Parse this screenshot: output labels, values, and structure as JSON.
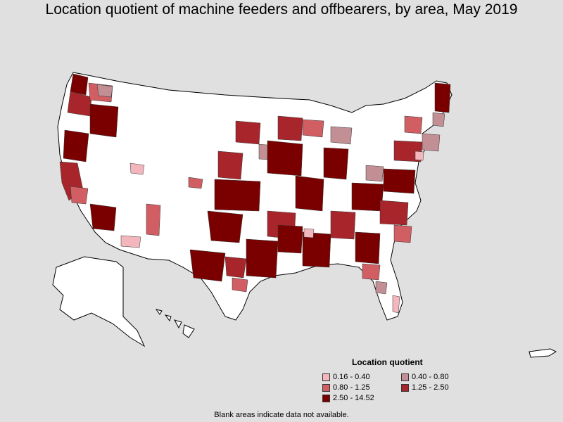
{
  "title": "Location quotient of machine feeders and offbearers, by area, May 2019",
  "legend": {
    "title": "Location quotient",
    "items": [
      {
        "label": "0.16 - 0.40",
        "color": "#f4b6bd"
      },
      {
        "label": "0.40 - 0.80",
        "color": "#c28f95"
      },
      {
        "label": "0.80 - 1.25",
        "color": "#d05e63"
      },
      {
        "label": "1.25 - 2.50",
        "color": "#a8262b"
      },
      {
        "label": "2.50 - 14.52",
        "color": "#7a0000"
      }
    ]
  },
  "footnote": "Blank areas indicate data not available.",
  "colors": {
    "background": "#e0e0e0",
    "no_data": "#ffffff",
    "border": "#000000"
  }
}
